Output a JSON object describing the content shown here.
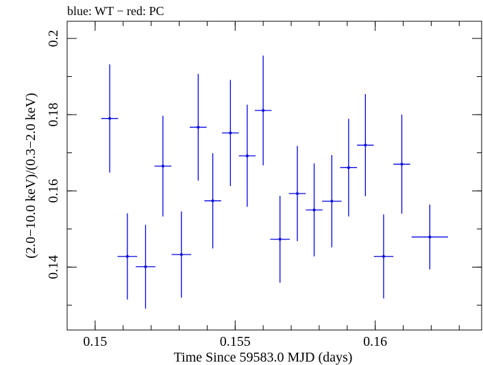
{
  "chart_data": {
    "type": "scatter",
    "title": "blue: WT − red: PC",
    "xlabel": "Time Since 59583.0 MJD (days)",
    "ylabel": "(2.0−10.0 keV)/(0.3−2.0 keV)",
    "xlim": [
      0.149,
      0.1638
    ],
    "ylim": [
      0.1235,
      0.2045
    ],
    "x_ticks": [
      {
        "value": 0.15,
        "label": "0.15"
      },
      {
        "value": 0.155,
        "label": "0.155"
      },
      {
        "value": 0.16,
        "label": "0.16"
      }
    ],
    "y_ticks": [
      {
        "value": 0.14,
        "label": "0.14"
      },
      {
        "value": 0.16,
        "label": "0.16"
      },
      {
        "value": 0.18,
        "label": "0.18"
      },
      {
        "value": 0.2,
        "label": "0.2"
      }
    ],
    "x_minor_step": 0.001,
    "y_minor_step": 0.01,
    "series": [
      {
        "color": "#0000e0",
        "points": [
          {
            "x": 0.15052,
            "xerr": 0.0003,
            "y": 0.179,
            "yerr": 0.0142
          },
          {
            "x": 0.15115,
            "xerr": 0.00035,
            "y": 0.1428,
            "yerr": 0.0113
          },
          {
            "x": 0.1518,
            "xerr": 0.00035,
            "y": 0.1401,
            "yerr": 0.011
          },
          {
            "x": 0.15242,
            "xerr": 0.0003,
            "y": 0.1665,
            "yerr": 0.0132
          },
          {
            "x": 0.15308,
            "xerr": 0.00035,
            "y": 0.1433,
            "yerr": 0.0113
          },
          {
            "x": 0.15368,
            "xerr": 0.0003,
            "y": 0.1767,
            "yerr": 0.014
          },
          {
            "x": 0.1542,
            "xerr": 0.0003,
            "y": 0.1574,
            "yerr": 0.0125
          },
          {
            "x": 0.15483,
            "xerr": 0.0003,
            "y": 0.1752,
            "yerr": 0.0139
          },
          {
            "x": 0.15543,
            "xerr": 0.0003,
            "y": 0.1692,
            "yerr": 0.0134
          },
          {
            "x": 0.156,
            "xerr": 0.0003,
            "y": 0.1811,
            "yerr": 0.0144
          },
          {
            "x": 0.1566,
            "xerr": 0.00035,
            "y": 0.1473,
            "yerr": 0.0114
          },
          {
            "x": 0.15722,
            "xerr": 0.0003,
            "y": 0.1593,
            "yerr": 0.0125
          },
          {
            "x": 0.15782,
            "xerr": 0.0003,
            "y": 0.155,
            "yerr": 0.0122
          },
          {
            "x": 0.15845,
            "xerr": 0.00035,
            "y": 0.1573,
            "yerr": 0.0121
          },
          {
            "x": 0.15905,
            "xerr": 0.0003,
            "y": 0.1661,
            "yerr": 0.0128
          },
          {
            "x": 0.15965,
            "xerr": 0.0003,
            "y": 0.172,
            "yerr": 0.0134
          },
          {
            "x": 0.1603,
            "xerr": 0.00035,
            "y": 0.1428,
            "yerr": 0.011
          },
          {
            "x": 0.16095,
            "xerr": 0.0003,
            "y": 0.167,
            "yerr": 0.013
          },
          {
            "x": 0.16195,
            "xerr": 0.00065,
            "y": 0.1479,
            "yerr": 0.0085
          }
        ]
      }
    ]
  }
}
